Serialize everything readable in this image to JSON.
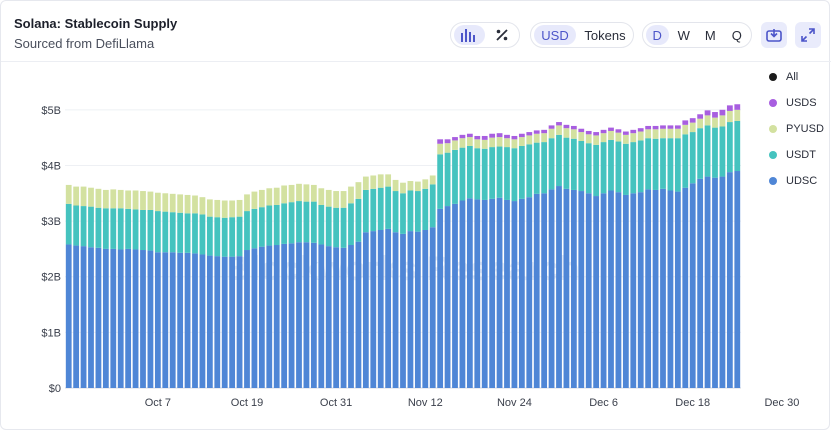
{
  "header": {
    "title": "Solana: Stablecoin Supply",
    "subtitle": "Sourced from DefiLlama"
  },
  "controls": {
    "chart_type_icons": [
      "bar-chart-icon",
      "percent-icon"
    ],
    "currency_options": [
      "USD",
      "Tokens"
    ],
    "currency_selected": "USD",
    "interval_options": [
      "D",
      "W",
      "M",
      "Q"
    ],
    "interval_selected": "D",
    "action_icons": [
      "download-image-icon",
      "expand-icon"
    ]
  },
  "legend": {
    "items": [
      {
        "label": "All",
        "color": "#1b1b1b"
      },
      {
        "label": "USDS",
        "color": "#a85ee0"
      },
      {
        "label": "PYUSD",
        "color": "#d3e1a0"
      },
      {
        "label": "USDT",
        "color": "#45c3bf"
      },
      {
        "label": "UDSC",
        "color": "#4f86d6"
      }
    ]
  },
  "watermark": "Blockworks Research",
  "chart_data": {
    "type": "bar",
    "stacked": true,
    "yticks": [
      "$0",
      "$1B",
      "$2B",
      "$3B",
      "$4B",
      "$5B"
    ],
    "ylim": [
      0,
      5.5
    ],
    "yunit": "B USD",
    "xticks": [
      "Oct 7",
      "Oct 19",
      "Oct 31",
      "Nov 12",
      "Nov 24",
      "Dec 6",
      "Dec 18",
      "Dec 30"
    ],
    "grid": true,
    "series": [
      {
        "name": "UDSC",
        "color": "#4f86d6",
        "values": [
          2.58,
          2.56,
          2.55,
          2.53,
          2.52,
          2.5,
          2.5,
          2.49,
          2.5,
          2.49,
          2.48,
          2.47,
          2.44,
          2.44,
          2.44,
          2.43,
          2.43,
          2.42,
          2.4,
          2.38,
          2.37,
          2.36,
          2.36,
          2.37,
          2.48,
          2.51,
          2.54,
          2.56,
          2.57,
          2.59,
          2.6,
          2.62,
          2.62,
          2.61,
          2.58,
          2.55,
          2.53,
          2.52,
          2.57,
          2.63,
          2.8,
          2.82,
          2.84,
          2.86,
          2.8,
          2.77,
          2.82,
          2.81,
          2.84,
          2.89,
          3.22,
          3.27,
          3.31,
          3.37,
          3.41,
          3.39,
          3.38,
          3.4,
          3.42,
          3.38,
          3.36,
          3.4,
          3.43,
          3.49,
          3.5,
          3.57,
          3.63,
          3.58,
          3.56,
          3.54,
          3.5,
          3.45,
          3.5,
          3.55,
          3.52,
          3.47,
          3.5,
          3.52,
          3.57,
          3.56,
          3.58,
          3.55,
          3.53,
          3.6,
          3.68,
          3.76,
          3.8,
          3.78,
          3.8,
          3.88,
          3.9
        ]
      },
      {
        "name": "USDT",
        "color": "#45c3bf",
        "values": [
          0.73,
          0.72,
          0.72,
          0.73,
          0.72,
          0.73,
          0.73,
          0.74,
          0.72,
          0.72,
          0.72,
          0.73,
          0.74,
          0.73,
          0.72,
          0.72,
          0.71,
          0.72,
          0.72,
          0.7,
          0.7,
          0.7,
          0.71,
          0.71,
          0.7,
          0.71,
          0.71,
          0.72,
          0.72,
          0.73,
          0.74,
          0.74,
          0.73,
          0.74,
          0.71,
          0.71,
          0.71,
          0.72,
          0.75,
          0.77,
          0.76,
          0.76,
          0.76,
          0.76,
          0.74,
          0.73,
          0.73,
          0.73,
          0.74,
          0.77,
          0.98,
          0.96,
          0.97,
          0.95,
          0.94,
          0.92,
          0.92,
          0.93,
          0.92,
          0.95,
          0.95,
          0.95,
          0.95,
          0.92,
          0.92,
          0.92,
          0.92,
          0.92,
          0.92,
          0.9,
          0.9,
          0.92,
          0.92,
          0.91,
          0.91,
          0.92,
          0.92,
          0.93,
          0.92,
          0.92,
          0.91,
          0.94,
          0.96,
          0.96,
          0.92,
          0.91,
          0.92,
          0.9,
          0.9,
          0.9,
          0.9
        ]
      },
      {
        "name": "PYUSD",
        "color": "#d3e1a0",
        "values": [
          0.34,
          0.34,
          0.35,
          0.34,
          0.34,
          0.33,
          0.34,
          0.33,
          0.33,
          0.34,
          0.34,
          0.33,
          0.33,
          0.33,
          0.33,
          0.33,
          0.33,
          0.32,
          0.31,
          0.31,
          0.31,
          0.31,
          0.3,
          0.3,
          0.3,
          0.31,
          0.31,
          0.31,
          0.31,
          0.32,
          0.31,
          0.31,
          0.31,
          0.3,
          0.3,
          0.3,
          0.3,
          0.3,
          0.3,
          0.3,
          0.24,
          0.24,
          0.24,
          0.22,
          0.2,
          0.19,
          0.17,
          0.17,
          0.17,
          0.16,
          0.19,
          0.17,
          0.17,
          0.17,
          0.16,
          0.16,
          0.16,
          0.17,
          0.17,
          0.16,
          0.16,
          0.16,
          0.16,
          0.16,
          0.16,
          0.17,
          0.17,
          0.17,
          0.17,
          0.16,
          0.16,
          0.17,
          0.16,
          0.16,
          0.16,
          0.16,
          0.16,
          0.16,
          0.16,
          0.17,
          0.17,
          0.17,
          0.17,
          0.17,
          0.17,
          0.17,
          0.18,
          0.18,
          0.2,
          0.2,
          0.2
        ]
      },
      {
        "name": "USDS",
        "color": "#a85ee0",
        "values": [
          0,
          0,
          0,
          0,
          0,
          0,
          0,
          0,
          0,
          0,
          0,
          0,
          0,
          0,
          0,
          0,
          0,
          0,
          0,
          0,
          0,
          0,
          0,
          0,
          0,
          0,
          0,
          0,
          0,
          0,
          0,
          0,
          0,
          0,
          0,
          0,
          0,
          0,
          0,
          0,
          0,
          0,
          0,
          0,
          0,
          0,
          0,
          0,
          0,
          0,
          0.08,
          0.07,
          0.06,
          0.06,
          0.06,
          0.06,
          0.07,
          0.07,
          0.07,
          0.06,
          0.06,
          0.06,
          0.06,
          0.06,
          0.06,
          0.06,
          0.06,
          0.06,
          0.06,
          0.06,
          0.06,
          0.06,
          0.06,
          0.06,
          0.06,
          0.06,
          0.06,
          0.06,
          0.06,
          0.06,
          0.06,
          0.06,
          0.06,
          0.08,
          0.08,
          0.08,
          0.09,
          0.1,
          0.1,
          0.1,
          0.1
        ]
      }
    ]
  }
}
